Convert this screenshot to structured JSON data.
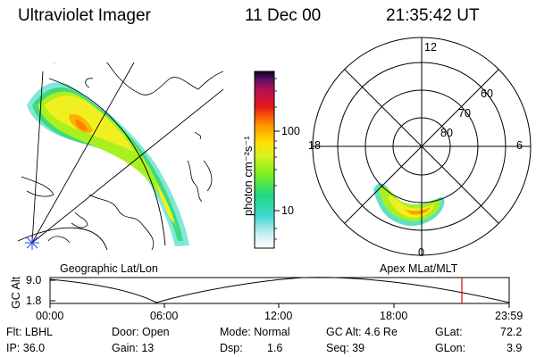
{
  "header": {
    "instrument": "Ultraviolet Imager",
    "date": "11 Dec 00",
    "time": "21:35:42 UT"
  },
  "colorbar": {
    "label": "photon cm⁻²s⁻¹",
    "ticks": [
      "100",
      "10"
    ]
  },
  "polar_plot": {
    "mlt_labels": [
      "12",
      "18",
      "6",
      "0"
    ],
    "lat_labels": [
      "60",
      "70",
      "80"
    ]
  },
  "map_caption": "Geographic Lat/Lon",
  "polar_caption": "Apex MLat/MLT",
  "altitude_plot": {
    "ylabel": "GC Alt",
    "y_ticks": [
      "9.0",
      "1.8"
    ],
    "x_ticks": [
      "00:00",
      "06:00",
      "12:00",
      "18:00",
      "23:59"
    ],
    "current_time_marker": "21:35",
    "marker_color": "#e00000"
  },
  "info": {
    "row1": {
      "flt": "Flt: LBHL",
      "door": "Door: Open",
      "mode": "Mode: Normal",
      "gc_alt": "GC Alt: 4.6 Re",
      "glat_label": "GLat:",
      "glat_value": "72.2"
    },
    "row2": {
      "ip": "IP: 36.0",
      "gain": "Gain: 13",
      "dsp_label": "Dsp:",
      "dsp_value": "1.6",
      "seq": "Seq: 39",
      "glon_label": "GLon:",
      "glon_value": "3.9"
    }
  }
}
